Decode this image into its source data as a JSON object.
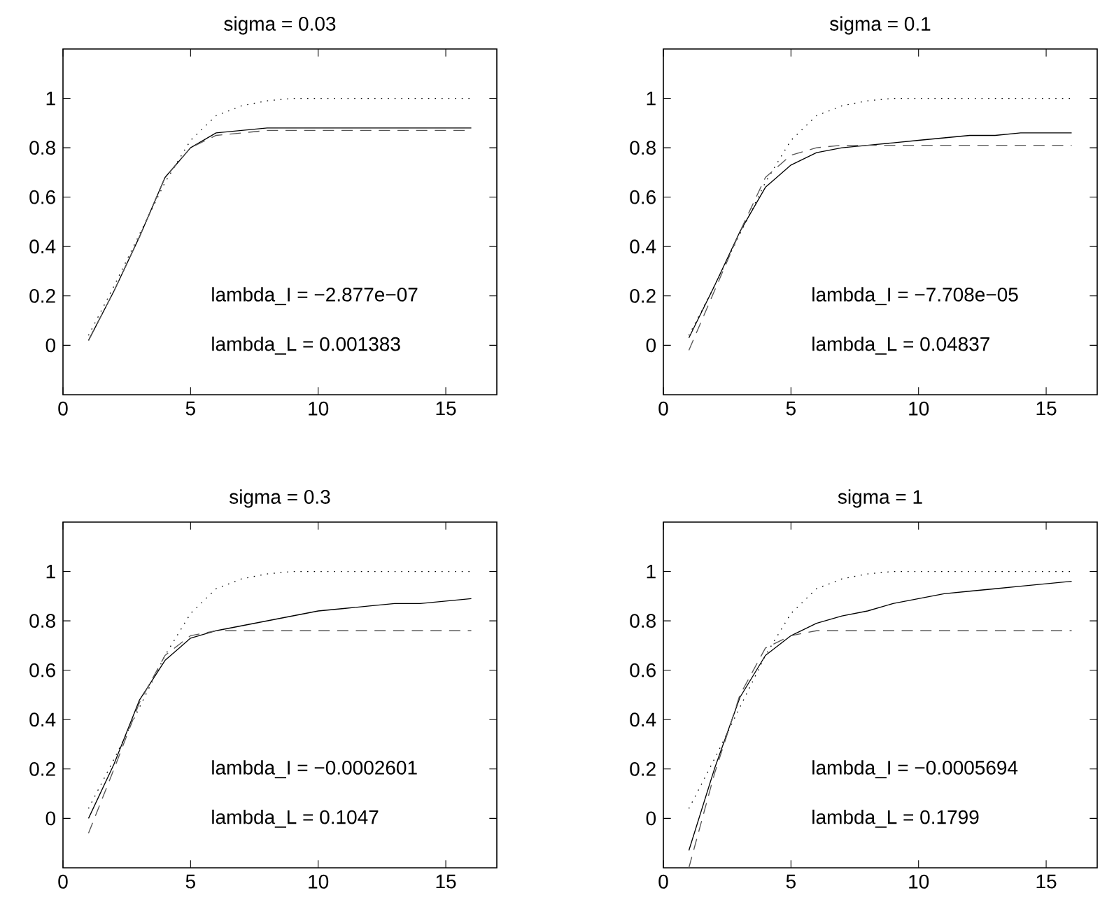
{
  "chart_data": [
    {
      "type": "line",
      "title": "sigma = 0.03",
      "x": [
        1,
        2,
        3,
        4,
        5,
        6,
        7,
        8,
        9,
        10,
        11,
        12,
        13,
        14,
        15,
        16
      ],
      "xlim": [
        0,
        17
      ],
      "ylim": [
        -0.2,
        1.2
      ],
      "xticks": [
        0,
        5,
        10,
        15
      ],
      "yticks": [
        0,
        0.2,
        0.4,
        0.6,
        0.8,
        1
      ],
      "grid": false,
      "marker": "none",
      "series": [
        {
          "color": "#000000",
          "line_style": "dotted",
          "values": [
            0.04,
            0.24,
            0.45,
            0.66,
            0.83,
            0.93,
            0.97,
            0.99,
            1,
            1,
            1,
            1,
            1,
            1,
            1,
            1
          ]
        },
        {
          "color": "#000000",
          "line_style": "solid",
          "values": [
            0.02,
            0.22,
            0.44,
            0.68,
            0.8,
            0.86,
            0.87,
            0.88,
            0.88,
            0.88,
            0.88,
            0.88,
            0.88,
            0.88,
            0.88,
            0.88
          ]
        },
        {
          "color": "#555555",
          "line_style": "dashed",
          "values": [
            0.02,
            0.22,
            0.44,
            0.68,
            0.8,
            0.85,
            0.86,
            0.87,
            0.87,
            0.87,
            0.87,
            0.87,
            0.87,
            0.87,
            0.87,
            0.87
          ]
        }
      ],
      "annotations": [
        "lambda_I = −2.877e−07",
        "lambda_L = 0.001383"
      ]
    },
    {
      "type": "line",
      "title": "sigma = 0.1",
      "x": [
        1,
        2,
        3,
        4,
        5,
        6,
        7,
        8,
        9,
        10,
        11,
        12,
        13,
        14,
        15,
        16
      ],
      "xlim": [
        0,
        17
      ],
      "ylim": [
        -0.2,
        1.2
      ],
      "xticks": [
        0,
        5,
        10,
        15
      ],
      "yticks": [
        0,
        0.2,
        0.4,
        0.6,
        0.8,
        1
      ],
      "grid": false,
      "marker": "none",
      "series": [
        {
          "color": "#000000",
          "line_style": "dotted",
          "values": [
            0.04,
            0.24,
            0.45,
            0.66,
            0.83,
            0.93,
            0.97,
            0.99,
            1,
            1,
            1,
            1,
            1,
            1,
            1,
            1
          ]
        },
        {
          "color": "#000000",
          "line_style": "solid",
          "values": [
            0.03,
            0.24,
            0.46,
            0.64,
            0.73,
            0.78,
            0.8,
            0.81,
            0.82,
            0.83,
            0.84,
            0.85,
            0.85,
            0.86,
            0.86,
            0.86
          ]
        },
        {
          "color": "#555555",
          "line_style": "dashed",
          "values": [
            -0.02,
            0.22,
            0.46,
            0.68,
            0.77,
            0.8,
            0.81,
            0.81,
            0.81,
            0.81,
            0.81,
            0.81,
            0.81,
            0.81,
            0.81,
            0.81
          ]
        }
      ],
      "annotations": [
        "lambda_I = −7.708e−05",
        "lambda_L = 0.04837"
      ]
    },
    {
      "type": "line",
      "title": "sigma = 0.3",
      "x": [
        1,
        2,
        3,
        4,
        5,
        6,
        7,
        8,
        9,
        10,
        11,
        12,
        13,
        14,
        15,
        16
      ],
      "xlim": [
        0,
        17
      ],
      "ylim": [
        -0.2,
        1.2
      ],
      "xticks": [
        0,
        5,
        10,
        15
      ],
      "yticks": [
        0,
        0.2,
        0.4,
        0.6,
        0.8,
        1
      ],
      "grid": false,
      "marker": "none",
      "series": [
        {
          "color": "#000000",
          "line_style": "dotted",
          "values": [
            0.04,
            0.24,
            0.45,
            0.66,
            0.83,
            0.93,
            0.97,
            0.99,
            1,
            1,
            1,
            1,
            1,
            1,
            1,
            1
          ]
        },
        {
          "color": "#000000",
          "line_style": "solid",
          "values": [
            0,
            0.22,
            0.48,
            0.64,
            0.73,
            0.76,
            0.78,
            0.8,
            0.82,
            0.84,
            0.85,
            0.86,
            0.87,
            0.87,
            0.88,
            0.89
          ]
        },
        {
          "color": "#555555",
          "line_style": "dashed",
          "values": [
            -0.06,
            0.2,
            0.47,
            0.66,
            0.74,
            0.76,
            0.76,
            0.76,
            0.76,
            0.76,
            0.76,
            0.76,
            0.76,
            0.76,
            0.76,
            0.76
          ]
        }
      ],
      "annotations": [
        "lambda_I = −0.0002601",
        "lambda_L = 0.1047"
      ]
    },
    {
      "type": "line",
      "title": "sigma = 1",
      "x": [
        1,
        2,
        3,
        4,
        5,
        6,
        7,
        8,
        9,
        10,
        11,
        12,
        13,
        14,
        15,
        16
      ],
      "xlim": [
        0,
        17
      ],
      "ylim": [
        -0.2,
        1.2
      ],
      "xticks": [
        0,
        5,
        10,
        15
      ],
      "yticks": [
        0,
        0.2,
        0.4,
        0.6,
        0.8,
        1
      ],
      "grid": false,
      "marker": "none",
      "series": [
        {
          "color": "#000000",
          "line_style": "dotted",
          "values": [
            0.04,
            0.24,
            0.45,
            0.66,
            0.83,
            0.93,
            0.97,
            0.99,
            1,
            1,
            1,
            1,
            1,
            1,
            1,
            1
          ]
        },
        {
          "color": "#000000",
          "line_style": "solid",
          "values": [
            -0.13,
            0.2,
            0.49,
            0.66,
            0.74,
            0.79,
            0.82,
            0.84,
            0.87,
            0.89,
            0.91,
            0.92,
            0.93,
            0.94,
            0.95,
            0.96
          ]
        },
        {
          "color": "#555555",
          "line_style": "dashed",
          "values": [
            -0.2,
            0.18,
            0.5,
            0.69,
            0.74,
            0.76,
            0.76,
            0.76,
            0.76,
            0.76,
            0.76,
            0.76,
            0.76,
            0.76,
            0.76,
            0.76
          ]
        }
      ],
      "annotations": [
        "lambda_I = −0.0005694",
        "lambda_L = 0.1799"
      ]
    }
  ]
}
